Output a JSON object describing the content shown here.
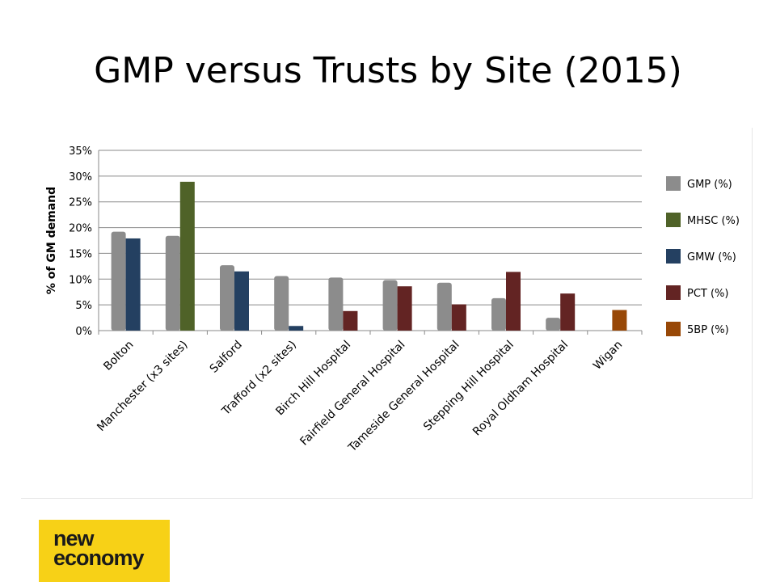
{
  "title": "GMP versus Trusts by Site (2015)",
  "logo": {
    "line1": "new",
    "line2": "economy"
  },
  "colors": {
    "GMP": "#8c8c8c",
    "MHSC": "#4f6228",
    "GMW": "#244061",
    "PCT": "#632423",
    "5BP": "#984807"
  },
  "chart_data": {
    "type": "bar",
    "title": "",
    "xlabel": "",
    "ylabel": "% of GM demand",
    "ylim": [
      0,
      35
    ],
    "yticks": [
      "0%",
      "5%",
      "10%",
      "15%",
      "20%",
      "25%",
      "30%",
      "35%"
    ],
    "grid": true,
    "legend_position": "right",
    "categories": [
      "Bolton",
      "Manchester (x3 sites)",
      "Salford",
      "Trafford (x2 sites)",
      "Birch Hill Hospital",
      "Fairfield General Hospital",
      "Tameside General Hospital",
      "Stepping Hill Hospital",
      "Royal Oldham Hospital",
      "Wigan"
    ],
    "series": [
      {
        "name": "GMP (%)",
        "key": "GMP",
        "values": [
          19.2,
          18.4,
          12.7,
          10.6,
          10.3,
          9.8,
          9.3,
          6.3,
          2.5,
          null
        ]
      },
      {
        "name": "MHSC (%)",
        "key": "MHSC",
        "values": [
          null,
          28.9,
          null,
          null,
          null,
          null,
          null,
          null,
          null,
          null
        ]
      },
      {
        "name": "GMW (%)",
        "key": "GMW",
        "values": [
          17.9,
          null,
          11.5,
          0.9,
          null,
          null,
          null,
          null,
          null,
          null
        ]
      },
      {
        "name": "PCT (%)",
        "key": "PCT",
        "values": [
          null,
          null,
          null,
          null,
          3.8,
          8.6,
          5.1,
          11.4,
          7.2,
          null
        ]
      },
      {
        "name": "5BP (%)",
        "key": "5BP",
        "values": [
          null,
          null,
          null,
          null,
          null,
          null,
          null,
          null,
          null,
          4.0
        ]
      }
    ]
  }
}
